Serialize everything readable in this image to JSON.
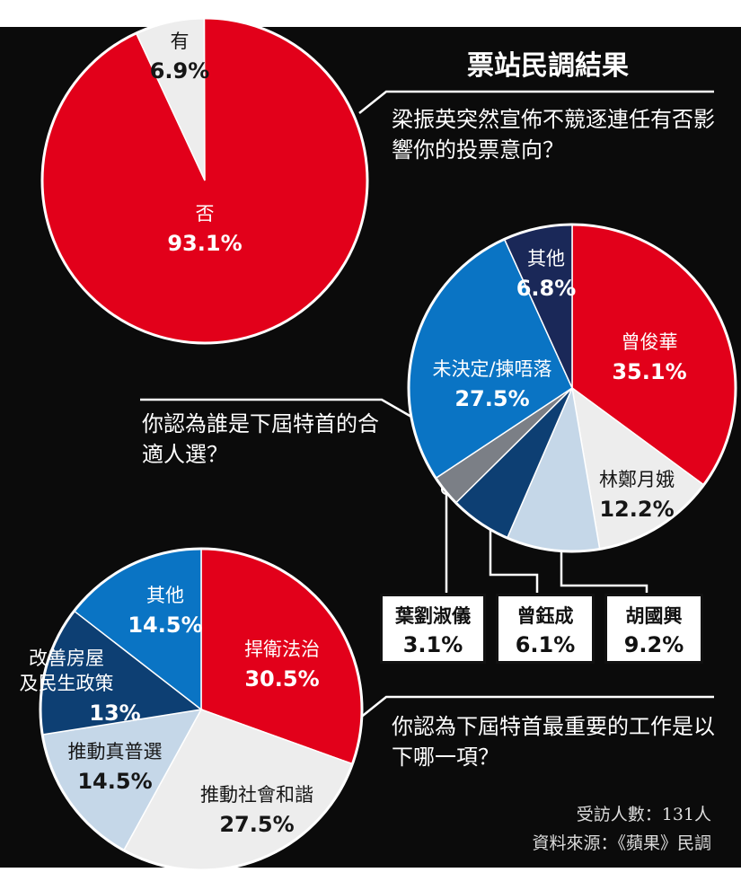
{
  "header": {
    "title": "票站民調結果"
  },
  "chart_data": [
    {
      "type": "pie",
      "question": "梁振英突然宣佈不競逐連任有否影響你的投票意向？",
      "slices": [
        {
          "label": "有",
          "value": 6.9,
          "display": "6.9%",
          "color": "#ededed"
        },
        {
          "label": "否",
          "value": 93.1,
          "display": "93.1%",
          "color": "#e2001a"
        }
      ]
    },
    {
      "type": "pie",
      "question": "你認為誰是下屆特首的合適人選？",
      "slices": [
        {
          "label": "曾俊華",
          "value": 35.1,
          "display": "35.1%",
          "color": "#e2001a"
        },
        {
          "label": "林鄭月娥",
          "value": 12.2,
          "display": "12.2%",
          "color": "#ededed"
        },
        {
          "label": "胡國興",
          "value": 9.2,
          "display": "9.2%",
          "color": "#c5d7e8"
        },
        {
          "label": "曾鈺成",
          "value": 6.1,
          "display": "6.1%",
          "color": "#0d3f73"
        },
        {
          "label": "葉劉淑儀",
          "value": 3.1,
          "display": "3.1%",
          "color": "#7b7f86"
        },
        {
          "label": "未決定/揀唔落",
          "value": 27.5,
          "display": "27.5%",
          "color": "#0a74c4"
        },
        {
          "label": "其他",
          "value": 6.8,
          "display": "6.8%",
          "color": "#1a2858"
        }
      ]
    },
    {
      "type": "pie",
      "question": "你認為下屆特首最重要的工作是以下哪一項？",
      "slices": [
        {
          "label": "捍衛法治",
          "value": 30.5,
          "display": "30.5%",
          "color": "#e2001a"
        },
        {
          "label": "推動社會和諧",
          "value": 27.5,
          "display": "27.5%",
          "color": "#ededed"
        },
        {
          "label": "推動真普選",
          "value": 14.5,
          "display": "14.5%",
          "color": "#c5d7e8"
        },
        {
          "label": "改善房屋及民生政策",
          "value": 13,
          "display": "13%",
          "color": "#0d3f73"
        },
        {
          "label": "其他",
          "value": 14.5,
          "display": "14.5%",
          "color": "#0a74c4"
        }
      ]
    }
  ],
  "footer": {
    "respondents": "受訪人數：131人",
    "source": "資料來源：《蘋果》民調"
  }
}
